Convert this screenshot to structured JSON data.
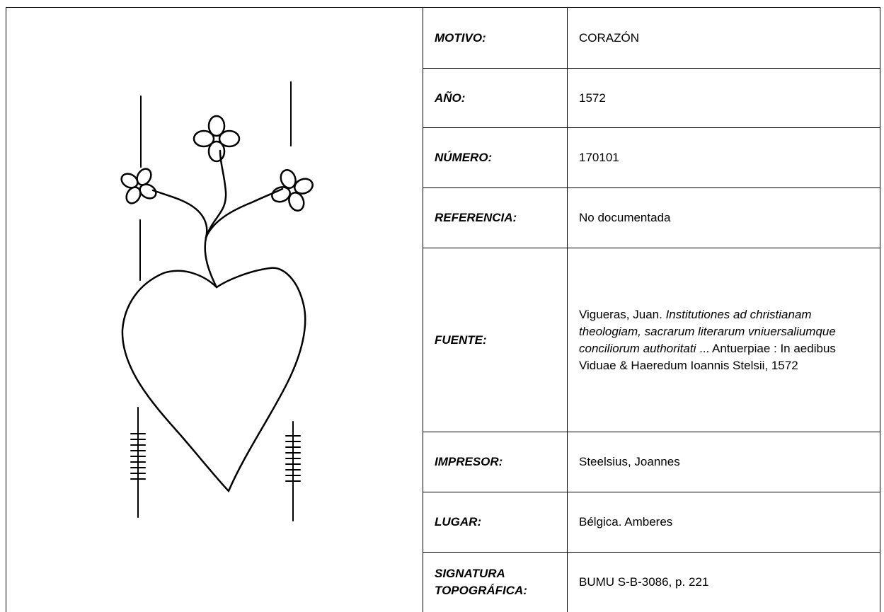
{
  "table": {
    "rows": [
      {
        "label": "MOTIVO:",
        "value": "CORAZÓN"
      },
      {
        "label": "AÑO:",
        "value": "1572"
      },
      {
        "label": "NÚMERO:",
        "value": "170101"
      },
      {
        "label": "REFERENCIA:",
        "value": "No documentada"
      },
      {
        "label": "FUENTE:",
        "value_parts": [
          "Vigueras, Juan.",
          "Institutiones ad christianam theologiam, sacrarum literarum vniuersaliumque conciliorum authoritati",
          "... Antuerpiae : In aedibus Viduae & Haeredum Ioannis Stelsii, 1572"
        ]
      },
      {
        "label": "IMPRESOR:",
        "value": "Steelsius, Joannes"
      },
      {
        "label": "LUGAR:",
        "value": "Bélgica. Amberes"
      },
      {
        "label": "SIGNATURA TOPOGRÁFICA:",
        "value": "BUMU S-B-3086, p. 221"
      }
    ]
  }
}
